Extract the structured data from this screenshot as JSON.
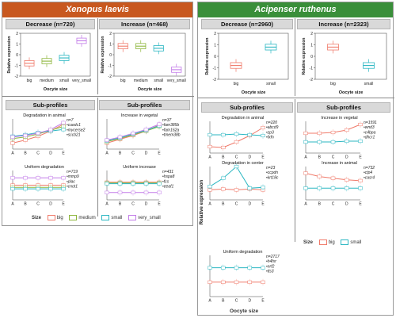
{
  "xenopus": {
    "title": "Xenopus laevis",
    "color": "#c8581f",
    "decrease_header": "Decrease (n=720)",
    "increase_header": "Increase (n=468)",
    "subprofiles_header": "Sub-profiles",
    "sizes": [
      "big",
      "medium",
      "small",
      "very_small"
    ],
    "size_colors": [
      "#f07a6a",
      "#8db63c",
      "#2bb7c2",
      "#c27be8"
    ],
    "xlabel": "Oocyte size",
    "ylabel": "Relative expression",
    "sub_xticks": [
      "A",
      "B",
      "C",
      "D",
      "E"
    ],
    "legend_title": "Size"
  },
  "acipenser": {
    "title": "Acipenser ruthenus",
    "color": "#3a8f3a",
    "decrease_header": "Decrease (n=2960)",
    "increase_header": "Increase (n=2323)",
    "subprofiles_header": "Sub-profiles",
    "sizes": [
      "big",
      "small"
    ],
    "size_colors": [
      "#f07a6a",
      "#2bb7c2"
    ],
    "xlabel": "Oocyte size",
    "ylabel": "Relative expression",
    "sub_xticks": [
      "A",
      "B",
      "C",
      "D",
      "E"
    ],
    "legend_title": "Size"
  },
  "chart_data": [
    {
      "id": "xl-decrease",
      "type": "box",
      "title": "Decrease (n=720)",
      "categories": [
        "big",
        "medium",
        "small",
        "very_small"
      ],
      "medians": [
        -0.8,
        -0.6,
        -0.3,
        1.3
      ],
      "ylim": [
        -2,
        2
      ],
      "yticks": [
        -2,
        -1,
        0,
        1,
        2
      ],
      "xlabel": "Oocyte size",
      "ylabel": "Relative expression"
    },
    {
      "id": "xl-increase",
      "type": "box",
      "title": "Increase (n=468)",
      "categories": [
        "big",
        "medium",
        "small",
        "very_small"
      ],
      "medians": [
        0.8,
        0.8,
        0.6,
        -1.4
      ],
      "ylim": [
        -2,
        2
      ],
      "yticks": [
        -2,
        -1,
        0,
        1,
        2
      ],
      "xlabel": "Oocyte size",
      "ylabel": "Relative expression"
    },
    {
      "id": "xl-sub-deg-animal",
      "type": "line",
      "title": "Degradation in animal",
      "annotation": [
        "n=7",
        "•cuedc1",
        "•mycerse2",
        "•sccb21"
      ],
      "x": [
        "A",
        "B",
        "C",
        "D",
        "E"
      ],
      "series": [
        {
          "values": [
            -1.2,
            -0.8,
            -0.3,
            0.4,
            1.3
          ]
        },
        {
          "values": [
            -0.6,
            -0.4,
            0.0,
            0.5,
            1.0
          ]
        },
        {
          "values": [
            -0.3,
            -0.1,
            0.2,
            0.4,
            0.6
          ]
        },
        {
          "values": [
            -0.4,
            -0.2,
            0.1,
            0.6,
            1.5
          ]
        }
      ]
    },
    {
      "id": "xl-sub-inc-vegetal",
      "type": "line",
      "title": "Increase in vegetal",
      "annotation": [
        "n=37",
        "•fam385b",
        "•fam162a",
        "•tmem38b"
      ],
      "x": [
        "A",
        "B",
        "C",
        "D",
        "E"
      ],
      "series": [
        {
          "values": [
            -1.2,
            -0.7,
            -0.2,
            0.4,
            1.2
          ]
        },
        {
          "values": [
            -1.0,
            -0.6,
            -0.1,
            0.4,
            1.0
          ]
        },
        {
          "values": [
            -0.9,
            -0.5,
            0.0,
            0.5,
            1.1
          ]
        },
        {
          "values": [
            -0.8,
            -0.4,
            0.1,
            0.6,
            1.3
          ]
        }
      ]
    },
    {
      "id": "xl-sub-uni-deg",
      "type": "line",
      "title": "Uniform degradation",
      "annotation": [
        "n=719",
        "•mmp9",
        "•plac",
        "•cnot1"
      ],
      "x": [
        "A",
        "B",
        "C",
        "D",
        "E"
      ],
      "series": [
        {
          "values": [
            0.0,
            0.0,
            0.0,
            0.0,
            0.0
          ]
        },
        {
          "values": [
            -0.3,
            -0.3,
            -0.3,
            -0.3,
            -0.3
          ]
        },
        {
          "values": [
            -0.5,
            -0.5,
            -0.5,
            -0.5,
            -0.5
          ]
        },
        {
          "values": [
            1.0,
            1.0,
            1.0,
            1.0,
            1.0
          ]
        }
      ]
    },
    {
      "id": "xl-sub-uni-inc",
      "type": "line",
      "title": "Uniform increase",
      "annotation": [
        "n=431",
        "•hspa8",
        "•fcs",
        "•eeaf1"
      ],
      "x": [
        "A",
        "B",
        "C",
        "D",
        "E"
      ],
      "series": [
        {
          "values": [
            0.4,
            0.4,
            0.4,
            0.4,
            0.4
          ]
        },
        {
          "values": [
            0.3,
            0.3,
            0.3,
            0.3,
            0.3
          ]
        },
        {
          "values": [
            0.2,
            0.2,
            0.2,
            0.2,
            0.2
          ]
        },
        {
          "values": [
            -1.0,
            -1.0,
            -1.0,
            -1.0,
            -1.0
          ]
        }
      ]
    },
    {
      "id": "ar-decrease",
      "type": "box",
      "title": "Decrease (n=2960)",
      "categories": [
        "big",
        "small"
      ],
      "medians": [
        -0.8,
        0.8
      ],
      "ylim": [
        -2,
        2
      ],
      "yticks": [
        -2,
        -1,
        0,
        1,
        2
      ],
      "xlabel": "Oocyte size",
      "ylabel": "Relative expression"
    },
    {
      "id": "ar-increase",
      "type": "box",
      "title": "Increase (n=2323)",
      "categories": [
        "big",
        "small"
      ],
      "medians": [
        0.8,
        -0.8
      ],
      "ylim": [
        -2,
        2
      ],
      "yticks": [
        -2,
        -1,
        0,
        1,
        2
      ],
      "xlabel": "Oocyte size",
      "ylabel": "Relative expression"
    },
    {
      "id": "ar-sub-deg-animal",
      "type": "line",
      "title": "Degradation in animal",
      "annotation": [
        "n=220",
        "•abcd9",
        "•zp3",
        "•fxfn"
      ],
      "x": [
        "A",
        "B",
        "C",
        "D",
        "E"
      ],
      "ylim": [
        -2,
        2
      ],
      "series": [
        {
          "name": "big",
          "values": [
            -1.2,
            -1.3,
            -0.6,
            0.2,
            1.2
          ]
        },
        {
          "name": "small",
          "values": [
            0.3,
            0.3,
            0.4,
            0.3,
            0.2
          ]
        }
      ]
    },
    {
      "id": "ar-sub-inc-vegetal",
      "type": "line",
      "title": "Increase in vegetal",
      "annotation": [
        "n=1591",
        "•wnd3",
        "•c4bpa",
        "•dhcr1"
      ],
      "x": [
        "A",
        "B",
        "C",
        "D",
        "E"
      ],
      "ylim": [
        -2,
        2
      ],
      "series": [
        {
          "name": "big",
          "values": [
            0.5,
            0.5,
            0.6,
            0.9,
            1.6
          ]
        },
        {
          "name": "small",
          "values": [
            -0.6,
            -0.6,
            -0.6,
            -0.5,
            -0.5
          ]
        }
      ]
    },
    {
      "id": "ar-sub-deg-center",
      "type": "line",
      "title": "Degradation in center",
      "annotation": [
        "n=23",
        "•ccpdn",
        "•krt18c"
      ],
      "x": [
        "A",
        "B",
        "C",
        "D",
        "E"
      ],
      "ylim": [
        -2,
        2
      ],
      "series": [
        {
          "name": "big",
          "values": [
            -0.8,
            -0.7,
            -0.8,
            -0.7,
            -0.8
          ]
        },
        {
          "name": "small",
          "values": [
            -0.4,
            0.6,
            2.0,
            -0.6,
            -0.5
          ]
        }
      ]
    },
    {
      "id": "ar-sub-inc-animal",
      "type": "line",
      "title": "Increase in animal",
      "annotation": [
        "n=732",
        "•ctp4",
        "•casr4"
      ],
      "x": [
        "A",
        "B",
        "C",
        "D",
        "E"
      ],
      "ylim": [
        -2,
        2
      ],
      "series": [
        {
          "name": "big",
          "values": [
            1.2,
            0.8,
            0.6,
            0.4,
            0.3
          ]
        },
        {
          "name": "small",
          "values": [
            -0.6,
            -0.6,
            -0.6,
            -0.6,
            -0.6
          ]
        }
      ]
    },
    {
      "id": "ar-sub-uni-deg",
      "type": "line",
      "title": "Uniform degradation",
      "annotation": [
        "n=2717",
        "•h4fxr",
        "•nrf2",
        "•tls3"
      ],
      "x": [
        "A",
        "B",
        "C",
        "D",
        "E"
      ],
      "ylim": [
        -2,
        2
      ],
      "series": [
        {
          "name": "big",
          "values": [
            -0.6,
            -0.6,
            -0.6,
            -0.6,
            -0.6
          ]
        },
        {
          "name": "small",
          "values": [
            0.8,
            0.8,
            0.8,
            0.8,
            0.8
          ]
        }
      ]
    }
  ]
}
